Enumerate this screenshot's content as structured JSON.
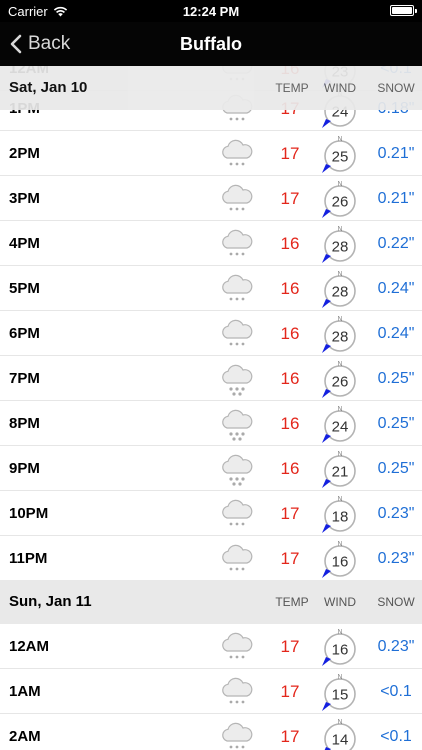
{
  "status_bar": {
    "carrier": "Carrier",
    "time": "12:24 PM"
  },
  "nav": {
    "back_label": "Back",
    "title": "Buffalo"
  },
  "columns": {
    "temp": "TEMP",
    "wind": "WIND",
    "snow": "SNOW"
  },
  "wind_north_label": "N",
  "colors": {
    "temp": "#e3261b",
    "snow": "#1f6fd6",
    "wind_arrow": "#1420e0"
  },
  "sections": [
    {
      "date": "Sat, Jan 10",
      "rows": [
        {
          "time": "12AM",
          "icon": "snow-cloud-icon",
          "temp": "16",
          "wind": "23",
          "snow": "<0.1"
        },
        {
          "time": "1PM",
          "icon": "snow-cloud-icon",
          "temp": "17",
          "wind": "24",
          "snow": "0.18\""
        },
        {
          "time": "2PM",
          "icon": "snow-cloud-icon",
          "temp": "17",
          "wind": "25",
          "snow": "0.21\""
        },
        {
          "time": "3PM",
          "icon": "snow-cloud-icon",
          "temp": "17",
          "wind": "26",
          "snow": "0.21\""
        },
        {
          "time": "4PM",
          "icon": "snow-cloud-icon",
          "temp": "16",
          "wind": "28",
          "snow": "0.22\""
        },
        {
          "time": "5PM",
          "icon": "snow-cloud-icon",
          "temp": "16",
          "wind": "28",
          "snow": "0.24\""
        },
        {
          "time": "6PM",
          "icon": "snow-cloud-icon",
          "temp": "16",
          "wind": "28",
          "snow": "0.24\""
        },
        {
          "time": "7PM",
          "icon": "heavy-snow-cloud-icon",
          "temp": "16",
          "wind": "26",
          "snow": "0.25\""
        },
        {
          "time": "8PM",
          "icon": "heavy-snow-cloud-icon",
          "temp": "16",
          "wind": "24",
          "snow": "0.25\""
        },
        {
          "time": "9PM",
          "icon": "heavy-snow-cloud-icon",
          "temp": "16",
          "wind": "21",
          "snow": "0.25\""
        },
        {
          "time": "10PM",
          "icon": "snow-cloud-icon",
          "temp": "17",
          "wind": "18",
          "snow": "0.23\""
        },
        {
          "time": "11PM",
          "icon": "snow-cloud-icon",
          "temp": "17",
          "wind": "16",
          "snow": "0.23\""
        }
      ]
    },
    {
      "date": "Sun, Jan 11",
      "rows": [
        {
          "time": "12AM",
          "icon": "snow-cloud-icon",
          "temp": "17",
          "wind": "16",
          "snow": "0.23\""
        },
        {
          "time": "1AM",
          "icon": "snow-cloud-icon",
          "temp": "17",
          "wind": "15",
          "snow": "<0.1"
        },
        {
          "time": "2AM",
          "icon": "snow-cloud-icon",
          "temp": "17",
          "wind": "14",
          "snow": "<0.1"
        }
      ]
    }
  ]
}
